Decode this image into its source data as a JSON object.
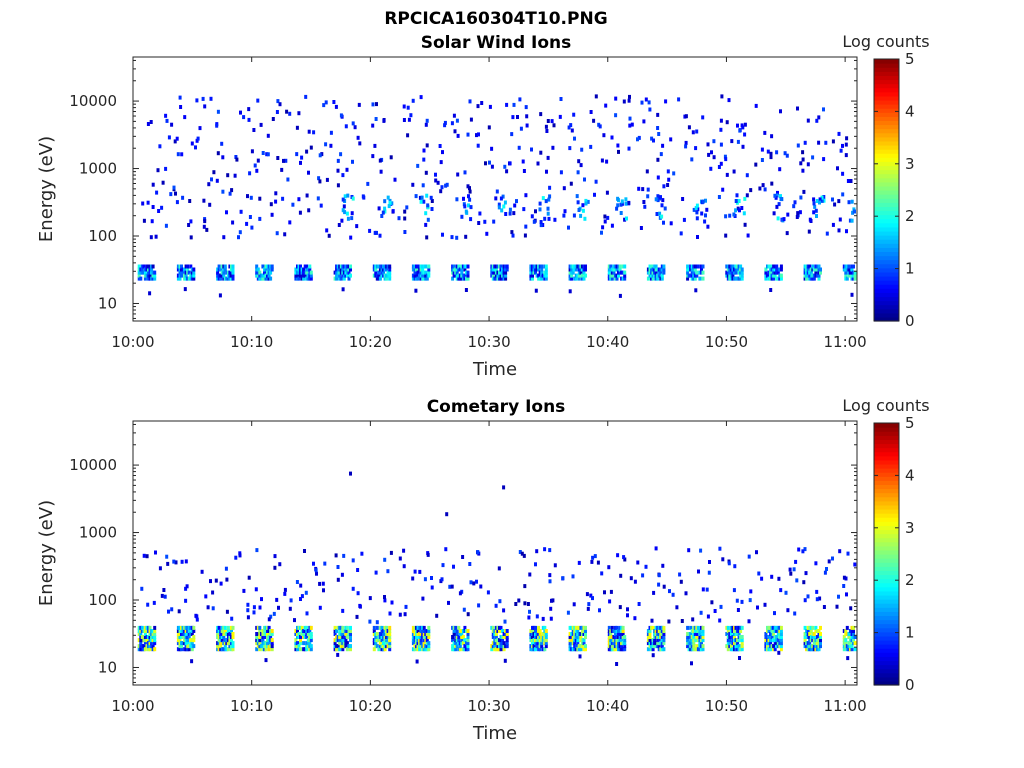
{
  "figure_title": "RPCICA160304T10.PNG",
  "chart_data": [
    {
      "type": "heatmap",
      "title": "Solar Wind Ions",
      "xlabel": "Time",
      "ylabel": "Energy (eV)",
      "x_tick_labels": [
        "10:00",
        "10:10",
        "10:20",
        "10:30",
        "10:40",
        "10:50",
        "11:00"
      ],
      "x_tick_minutes": [
        0,
        10,
        20,
        30,
        40,
        50,
        60
      ],
      "xlim_minutes": [
        0,
        61
      ],
      "y_scale": "log",
      "ylim": [
        5.5,
        45000
      ],
      "y_tick_values": [
        10,
        100,
        1000,
        10000
      ],
      "y_tick_labels": [
        "10",
        "100",
        "1000",
        "10000"
      ],
      "colorbar": {
        "label": "Log counts",
        "ticks": [
          "0",
          "1",
          "2",
          "3",
          "4",
          "5"
        ],
        "range": [
          0,
          5
        ],
        "colormap": "jet"
      },
      "description_of_data": "sparse scattered counts 100-15000 eV; periodic bursts (~3.3 min period) at 25-40 eV with log counts 1-2; scattered blobs 200-800 eV",
      "burst_period_minutes": 3.3,
      "burst_energy_band_eV": [
        25,
        40
      ],
      "burst_peak_log_counts": 2.0
    },
    {
      "type": "heatmap",
      "title": "Cometary Ions",
      "xlabel": "Time",
      "ylabel": "Energy (eV)",
      "x_tick_labels": [
        "10:00",
        "10:10",
        "10:20",
        "10:30",
        "10:40",
        "10:50",
        "11:00"
      ],
      "x_tick_minutes": [
        0,
        10,
        20,
        30,
        40,
        50,
        60
      ],
      "xlim_minutes": [
        0,
        61
      ],
      "y_scale": "log",
      "ylim": [
        5.5,
        45000
      ],
      "y_tick_values": [
        10,
        100,
        1000,
        10000
      ],
      "y_tick_labels": [
        "10",
        "100",
        "1000",
        "10000"
      ],
      "colorbar": {
        "label": "Log counts",
        "ticks": [
          "0",
          "1",
          "2",
          "3",
          "4",
          "5"
        ],
        "range": [
          0,
          5
        ],
        "colormap": "jet"
      },
      "description_of_data": "periodic bursts (~3.3 min period) at 20-45 eV with log counts up to ~3; tails extending to 100-500 eV; isolated points near 2000, 5000 and 8000 eV",
      "burst_period_minutes": 3.3,
      "burst_energy_band_eV": [
        20,
        45
      ],
      "burst_peak_log_counts": 3.0
    }
  ]
}
